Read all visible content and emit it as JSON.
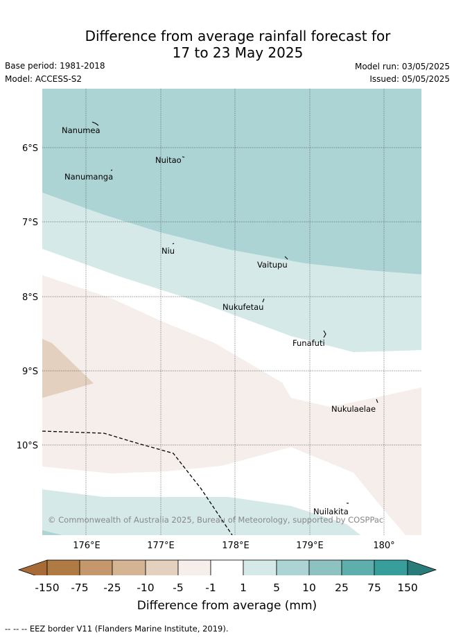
{
  "title": {
    "line1": "Difference from average rainfall forecast for",
    "line2": "17 to 23 May 2025"
  },
  "meta": {
    "base_period": "Base period: 1981-2018",
    "model": "Model: ACCESS-S2",
    "model_run": "Model run: 03/05/2025",
    "issued": "Issued: 05/05/2025"
  },
  "axes": {
    "x_ticks": [
      "176°E",
      "177°E",
      "178°E",
      "179°E",
      "180°"
    ],
    "y_ticks": [
      "6°S",
      "7°S",
      "8°S",
      "9°S",
      "10°S"
    ]
  },
  "places": [
    "Nanumea",
    "Nuitao",
    "Nanumanga",
    "Niu",
    "Vaitupu",
    "Nukufetau",
    "Funafuti",
    "Nukulaelae",
    "Nuilakita"
  ],
  "copyright": "© Commonwealth of Australia 2025, Bureau of Meteorology, supported by COSPPac",
  "colorbar": {
    "ticks": [
      "-150",
      "-75",
      "-25",
      "-10",
      "-5",
      "-1",
      "1",
      "5",
      "10",
      "25",
      "75",
      "150"
    ],
    "colors": [
      "#a86b38",
      "#b07a45",
      "#c4976c",
      "#d5b493",
      "#e4d0be",
      "#f5eeea",
      "#ffffff",
      "#d5e9e8",
      "#acd4d4",
      "#8ec2c1",
      "#5eaead",
      "#379e9c",
      "#2a7c7a"
    ],
    "label": "Difference from average (mm)"
  },
  "footnote": "-- -- -- EEZ border V11 (Flanders Marine Institute, 2019)."
}
